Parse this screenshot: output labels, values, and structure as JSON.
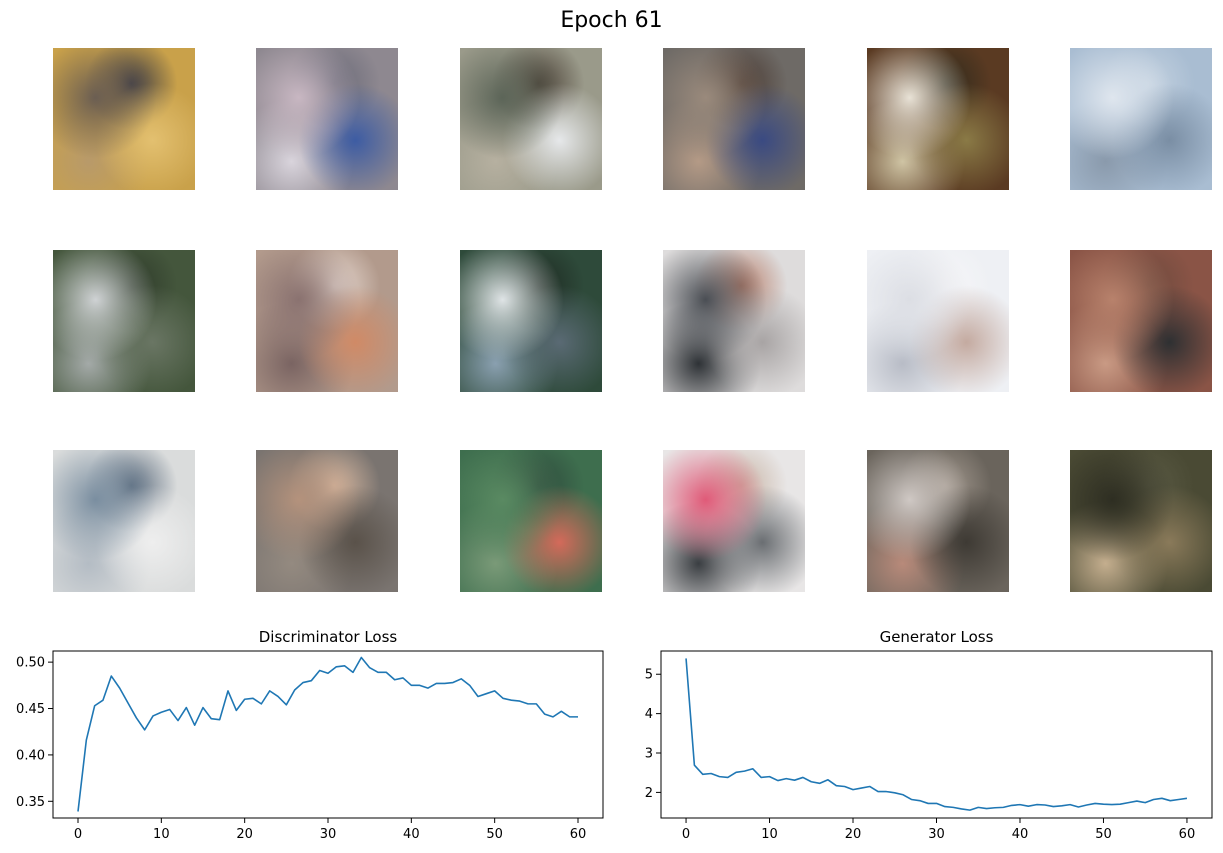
{
  "title": "Epoch 61",
  "samples": [
    {
      "icon": "sample-image-icon",
      "colors": [
        "#c9a14a",
        "#6b5e52",
        "#e3c070",
        "#3a3a44",
        "#b89a6a"
      ]
    },
    {
      "icon": "sample-image-icon",
      "colors": [
        "#8e8890",
        "#c8b7c2",
        "#3d5ca3",
        "#6a6a78",
        "#d9d4dc"
      ]
    },
    {
      "icon": "sample-image-icon",
      "colors": [
        "#9a9a8a",
        "#5c6558",
        "#e6e8ea",
        "#4a4036",
        "#b6b0a0"
      ]
    },
    {
      "icon": "sample-image-icon",
      "colors": [
        "#6e6a66",
        "#9a8a7c",
        "#3a4a82",
        "#4a3a32",
        "#b49a86"
      ]
    },
    {
      "icon": "sample-image-icon",
      "colors": [
        "#5a3a22",
        "#e8e2d6",
        "#8a7a46",
        "#2e2a1c",
        "#cfc4a4"
      ]
    },
    {
      "icon": "sample-image-icon",
      "colors": [
        "#a9bdd2",
        "#dfe6ee",
        "#7a8ea4",
        "#c4d2e0",
        "#8a9aac"
      ]
    },
    {
      "icon": "sample-image-icon",
      "colors": [
        "#44563c",
        "#cfd2d4",
        "#6a7664",
        "#2e3a2a",
        "#a4aaa8"
      ]
    },
    {
      "icon": "sample-image-icon",
      "colors": [
        "#b29a8c",
        "#8a7270",
        "#d08a66",
        "#e8dad2",
        "#7a6462"
      ]
    },
    {
      "icon": "sample-image-icon",
      "colors": [
        "#2e4a3a",
        "#dfe4e6",
        "#5a6a74",
        "#1e2a22",
        "#8aa0b0"
      ]
    },
    {
      "icon": "sample-image-icon",
      "colors": [
        "#dedcdc",
        "#4a4e54",
        "#a8a4a4",
        "#b87e6a",
        "#2e3236"
      ]
    },
    {
      "icon": "sample-image-icon",
      "colors": [
        "#eef0f4",
        "#dcdee4",
        "#c4aaa0",
        "#f6f6f8",
        "#b8bcc6"
      ]
    },
    {
      "icon": "sample-image-icon",
      "colors": [
        "#8a5446",
        "#b8826c",
        "#2e3032",
        "#6e4a3e",
        "#c99a84"
      ]
    },
    {
      "icon": "sample-image-icon",
      "colors": [
        "#dadcdc",
        "#7a8ea0",
        "#eeeeee",
        "#5a6a7c",
        "#b4bcc4"
      ]
    },
    {
      "icon": "sample-image-icon",
      "colors": [
        "#7a7470",
        "#b4927c",
        "#5a524a",
        "#d8b8a0",
        "#948a80"
      ]
    },
    {
      "icon": "sample-image-icon",
      "colors": [
        "#3e6e4e",
        "#5a8a62",
        "#d46a5a",
        "#2e4a3c",
        "#7a9a78"
      ]
    },
    {
      "icon": "sample-image-icon",
      "colors": [
        "#e8e6e6",
        "#e05a78",
        "#6a6e72",
        "#c8b4a4",
        "#3a3e42"
      ]
    },
    {
      "icon": "sample-image-icon",
      "colors": [
        "#6a645c",
        "#cfc8c4",
        "#3e3a34",
        "#a49a90",
        "#b88a7a"
      ]
    },
    {
      "icon": "sample-image-icon",
      "colors": [
        "#4a4a34",
        "#2e2e22",
        "#8a7a5a",
        "#5a5a44",
        "#c4ae8e"
      ]
    }
  ],
  "chart_data": [
    {
      "type": "line",
      "title": "Discriminator Loss",
      "xlabel": "",
      "ylabel": "",
      "xlim": [
        -3,
        63
      ],
      "ylim": [
        0.332,
        0.512
      ],
      "xticks": [
        0,
        10,
        20,
        30,
        40,
        50,
        60
      ],
      "yticks": [
        0.35,
        0.4,
        0.45,
        0.5
      ],
      "ytick_labels": [
        "0.35",
        "0.40",
        "0.45",
        "0.50"
      ],
      "grid": false,
      "color": "#1f77b4",
      "x": [
        0,
        1,
        2,
        3,
        4,
        5,
        6,
        7,
        8,
        9,
        10,
        11,
        12,
        13,
        14,
        15,
        16,
        17,
        18,
        19,
        20,
        21,
        22,
        23,
        24,
        25,
        26,
        27,
        28,
        29,
        30,
        31,
        32,
        33,
        34,
        35,
        36,
        37,
        38,
        39,
        40,
        41,
        42,
        43,
        44,
        45,
        46,
        47,
        48,
        49,
        50,
        51,
        52,
        53,
        54,
        55,
        56,
        57,
        58,
        59,
        60
      ],
      "y": [
        0.339,
        0.416,
        0.453,
        0.459,
        0.485,
        0.472,
        0.456,
        0.44,
        0.427,
        0.442,
        0.446,
        0.449,
        0.437,
        0.451,
        0.432,
        0.451,
        0.439,
        0.438,
        0.469,
        0.448,
        0.46,
        0.461,
        0.455,
        0.469,
        0.463,
        0.454,
        0.47,
        0.478,
        0.48,
        0.491,
        0.488,
        0.495,
        0.496,
        0.489,
        0.505,
        0.494,
        0.489,
        0.489,
        0.481,
        0.483,
        0.475,
        0.475,
        0.472,
        0.477,
        0.477,
        0.478,
        0.482,
        0.475,
        0.463,
        0.466,
        0.469,
        0.461,
        0.459,
        0.458,
        0.455,
        0.455,
        0.444,
        0.441,
        0.447,
        0.441,
        0.441
      ]
    },
    {
      "type": "line",
      "title": "Generator Loss",
      "xlabel": "",
      "ylabel": "",
      "xlim": [
        -3,
        63
      ],
      "ylim": [
        1.35,
        5.59
      ],
      "xticks": [
        0,
        10,
        20,
        30,
        40,
        50,
        60
      ],
      "yticks": [
        2,
        3,
        4,
        5
      ],
      "ytick_labels": [
        "2",
        "3",
        "4",
        "5"
      ],
      "grid": false,
      "color": "#1f77b4",
      "x": [
        0,
        1,
        2,
        3,
        4,
        5,
        6,
        7,
        8,
        9,
        10,
        11,
        12,
        13,
        14,
        15,
        16,
        17,
        18,
        19,
        20,
        21,
        22,
        23,
        24,
        25,
        26,
        27,
        28,
        29,
        30,
        31,
        32,
        33,
        34,
        35,
        36,
        37,
        38,
        39,
        40,
        41,
        42,
        43,
        44,
        45,
        46,
        47,
        48,
        49,
        50,
        51,
        52,
        53,
        54,
        55,
        56,
        57,
        58,
        59,
        60
      ],
      "y": [
        5.4,
        2.69,
        2.46,
        2.48,
        2.4,
        2.38,
        2.51,
        2.54,
        2.6,
        2.38,
        2.4,
        2.3,
        2.35,
        2.31,
        2.38,
        2.27,
        2.23,
        2.32,
        2.17,
        2.15,
        2.07,
        2.11,
        2.15,
        2.02,
        2.02,
        1.99,
        1.94,
        1.82,
        1.79,
        1.72,
        1.72,
        1.64,
        1.62,
        1.58,
        1.55,
        1.62,
        1.59,
        1.61,
        1.62,
        1.67,
        1.69,
        1.65,
        1.69,
        1.68,
        1.64,
        1.66,
        1.69,
        1.63,
        1.68,
        1.72,
        1.7,
        1.69,
        1.7,
        1.74,
        1.78,
        1.74,
        1.82,
        1.85,
        1.79,
        1.82,
        1.85
      ]
    }
  ]
}
